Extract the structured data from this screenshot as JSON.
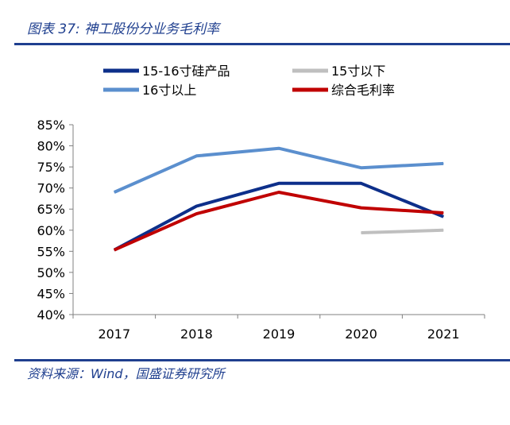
{
  "header": {
    "figure_title": "图表 37:  神工股份分业务毛利率"
  },
  "footer": {
    "source": "资料来源：Wind，国盛证券研究所"
  },
  "chart_data": {
    "type": "line",
    "title": "神工股份分业务毛利率",
    "categories": [
      "2017",
      "2018",
      "2019",
      "2020",
      "2021"
    ],
    "ylim": [
      0.4,
      0.85
    ],
    "yticks": [
      0.4,
      0.45,
      0.5,
      0.55,
      0.6,
      0.65,
      0.7,
      0.75,
      0.8,
      0.85
    ],
    "ytick_labels": [
      "40%",
      "45%",
      "50%",
      "55%",
      "60%",
      "65%",
      "70%",
      "75%",
      "80%",
      "85%"
    ],
    "legend_placement": "top",
    "series": [
      {
        "name": "15-16寸硅产品",
        "color": "#0d2f8a",
        "values": [
          0.553,
          0.657,
          0.711,
          0.711,
          0.632
        ]
      },
      {
        "name": "15寸以下",
        "color": "#bfbfbf",
        "values": [
          null,
          null,
          null,
          0.594,
          0.6
        ]
      },
      {
        "name": "16寸以上",
        "color": "#5b8fce",
        "values": [
          0.69,
          0.776,
          0.794,
          0.748,
          0.758
        ]
      },
      {
        "name": "综合毛利率",
        "color": "#c00000",
        "values": [
          0.553,
          0.639,
          0.69,
          0.653,
          0.641
        ]
      }
    ]
  }
}
